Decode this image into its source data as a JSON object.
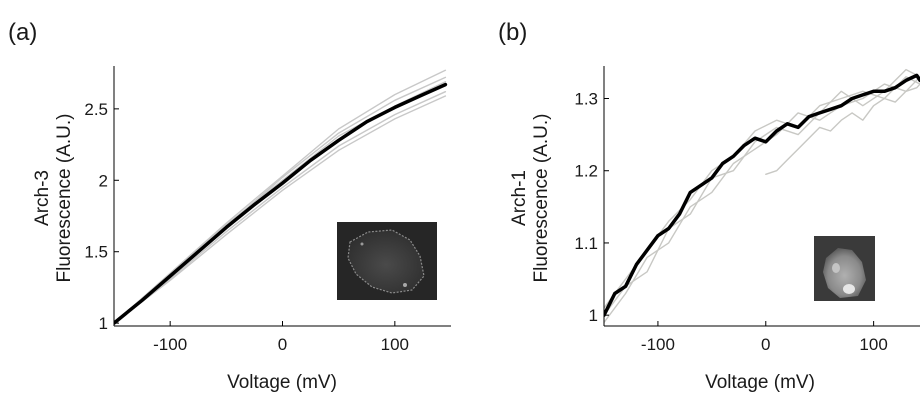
{
  "chart_data": [
    {
      "panel_label": "(a)",
      "type": "line",
      "xlabel": "Voltage (mV)",
      "ylabel": [
        "Arch-3",
        "Fluorescence (A.U.)"
      ],
      "xlim": [
        -150,
        150
      ],
      "ylim": [
        0.98,
        2.8
      ],
      "xticks": [
        -100,
        0,
        100
      ],
      "xtick_labels": [
        "-100",
        "0",
        "100"
      ],
      "yticks": [
        1,
        1.5,
        2,
        2.5
      ],
      "ytick_labels": [
        "1",
        "1.5",
        "2",
        "2.5"
      ],
      "grid": false,
      "legend": false,
      "inset": "fluorescence-cell-image",
      "series": [
        {
          "role": "mean",
          "color": "#000000",
          "x": [
            -150,
            -125,
            -100,
            -75,
            -50,
            -25,
            0,
            25,
            50,
            75,
            100,
            125,
            145
          ],
          "y": [
            1.0,
            1.16,
            1.33,
            1.5,
            1.67,
            1.83,
            1.98,
            2.14,
            2.28,
            2.41,
            2.51,
            2.6,
            2.67
          ]
        },
        {
          "role": "individual",
          "color": "#c8c8c8",
          "x": [
            -150,
            -100,
            -50,
            0,
            50,
            100,
            145
          ],
          "y": [
            1.0,
            1.35,
            1.7,
            2.03,
            2.36,
            2.6,
            2.77
          ]
        },
        {
          "role": "individual",
          "color": "#c8c8c8",
          "x": [
            -150,
            -100,
            -50,
            0,
            50,
            100,
            145
          ],
          "y": [
            1.0,
            1.33,
            1.68,
            2.02,
            2.33,
            2.56,
            2.72
          ]
        },
        {
          "role": "individual",
          "color": "#c8c8c8",
          "x": [
            -150,
            -100,
            -50,
            0,
            50,
            100,
            145
          ],
          "y": [
            1.0,
            1.31,
            1.64,
            1.95,
            2.24,
            2.46,
            2.62
          ]
        },
        {
          "role": "individual",
          "color": "#c8c8c8",
          "x": [
            -150,
            -100,
            -50,
            0,
            50,
            100,
            145
          ],
          "y": [
            1.0,
            1.3,
            1.62,
            1.93,
            2.21,
            2.43,
            2.59
          ]
        },
        {
          "role": "individual",
          "color": "#c8c8c8",
          "x": [
            -150,
            -100,
            -50,
            0,
            50,
            100,
            145
          ],
          "y": [
            1.0,
            1.34,
            1.69,
            2.0,
            2.31,
            2.52,
            2.69
          ]
        }
      ]
    },
    {
      "panel_label": "(b)",
      "type": "line",
      "xlabel": "Voltage (mV)",
      "ylabel": [
        "Arch-1",
        "Fluorescence (A.U.)"
      ],
      "xlim": [
        -150,
        143
      ],
      "ylim": [
        0.985,
        1.345
      ],
      "xticks": [
        -100,
        0,
        100
      ],
      "xtick_labels": [
        "-100",
        "0",
        "100"
      ],
      "yticks": [
        1,
        1.1,
        1.2,
        1.3
      ],
      "ytick_labels": [
        "1",
        "1.1",
        "1.2",
        "1.3"
      ],
      "grid": false,
      "legend": false,
      "inset": "fluorescence-cell-image",
      "series": [
        {
          "role": "mean",
          "color": "#000000",
          "x": [
            -150,
            -140,
            -130,
            -120,
            -110,
            -100,
            -90,
            -80,
            -70,
            -60,
            -50,
            -40,
            -30,
            -20,
            -10,
            0,
            10,
            20,
            30,
            40,
            50,
            60,
            70,
            80,
            90,
            100,
            110,
            120,
            130,
            140,
            143
          ],
          "y": [
            1.0,
            1.03,
            1.04,
            1.07,
            1.09,
            1.11,
            1.12,
            1.14,
            1.17,
            1.18,
            1.19,
            1.21,
            1.22,
            1.235,
            1.245,
            1.24,
            1.255,
            1.265,
            1.26,
            1.275,
            1.28,
            1.285,
            1.29,
            1.3,
            1.305,
            1.31,
            1.31,
            1.315,
            1.325,
            1.332,
            1.325
          ]
        },
        {
          "role": "individual",
          "color": "#c8c8c4",
          "x": [
            -150,
            -130,
            -110,
            -90,
            -70,
            -50,
            -30,
            -10,
            10,
            30,
            50,
            70,
            90,
            110,
            130,
            143
          ],
          "y": [
            1.01,
            1.05,
            1.09,
            1.13,
            1.16,
            1.2,
            1.22,
            1.255,
            1.27,
            1.26,
            1.29,
            1.3,
            1.31,
            1.3,
            1.33,
            1.32
          ]
        },
        {
          "role": "individual",
          "color": "#c8c8c4",
          "x": [
            -150,
            -130,
            -110,
            -90,
            -70,
            -50,
            -30,
            -10,
            10,
            30,
            50,
            70,
            90,
            110,
            130,
            143
          ],
          "y": [
            0.99,
            1.03,
            1.08,
            1.1,
            1.15,
            1.17,
            1.21,
            1.23,
            1.25,
            1.28,
            1.27,
            1.29,
            1.3,
            1.32,
            1.31,
            1.33
          ]
        },
        {
          "role": "individual",
          "color": "#c8c8c4",
          "x": [
            -150,
            -130,
            -110,
            -90,
            -70,
            -50,
            -30,
            -10,
            10,
            30,
            50,
            70,
            90,
            110,
            130,
            143
          ],
          "y": [
            1.0,
            1.04,
            1.06,
            1.12,
            1.14,
            1.19,
            1.2,
            1.24,
            1.26,
            1.25,
            1.28,
            1.31,
            1.29,
            1.31,
            1.34,
            1.33
          ]
        },
        {
          "role": "individual",
          "color": "#c8c8c4",
          "x": [
            0,
            10,
            20,
            30,
            40,
            50,
            60,
            70,
            80,
            90,
            100,
            110,
            120,
            130,
            140,
            143
          ],
          "y": [
            1.195,
            1.2,
            1.215,
            1.23,
            1.245,
            1.26,
            1.255,
            1.27,
            1.28,
            1.27,
            1.29,
            1.3,
            1.295,
            1.31,
            1.315,
            1.32
          ]
        }
      ]
    }
  ]
}
